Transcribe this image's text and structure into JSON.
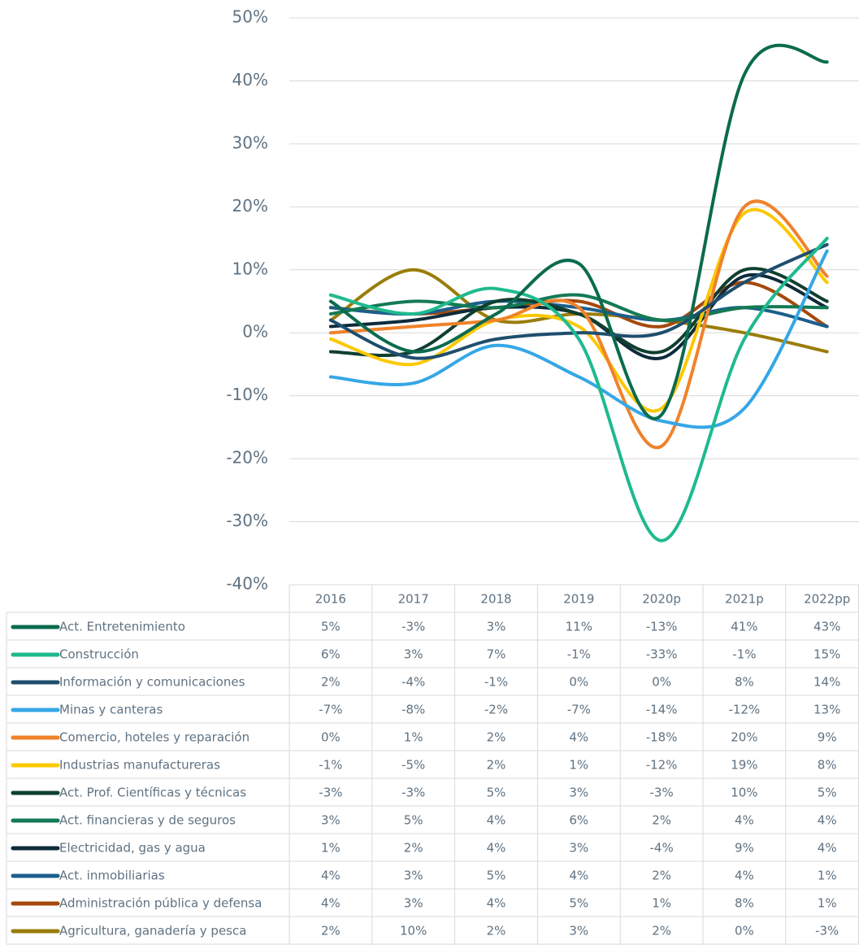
{
  "chart_data": {
    "type": "line",
    "categories": [
      "2016",
      "2017",
      "2018",
      "2019",
      "2020p",
      "2021p",
      "2022pp"
    ],
    "ylim": [
      -40,
      50
    ],
    "yticks": [
      {
        "value": -40,
        "label": "-40%"
      },
      {
        "value": -30,
        "label": "-30%"
      },
      {
        "value": -20,
        "label": "-20%"
      },
      {
        "value": -10,
        "label": "-10%"
      },
      {
        "value": 0,
        "label": "0%"
      },
      {
        "value": 10,
        "label": "10%"
      },
      {
        "value": 20,
        "label": "20%"
      },
      {
        "value": 30,
        "label": "30%"
      },
      {
        "value": 40,
        "label": "40%"
      },
      {
        "value": 50,
        "label": "50%"
      }
    ],
    "grid": true,
    "series": [
      {
        "name": "Act. Entretenimiento",
        "color": "#0b6b4e",
        "values": [
          5,
          -3,
          3,
          11,
          -13,
          41,
          43
        ],
        "value_labels": [
          "5%",
          "-3%",
          "3%",
          "11%",
          "-13%",
          "41%",
          "43%"
        ]
      },
      {
        "name": "Construcción",
        "color": "#1fba8f",
        "values": [
          6,
          3,
          7,
          -1,
          -33,
          -1,
          15
        ],
        "value_labels": [
          "6%",
          "3%",
          "7%",
          "-1%",
          "-33%",
          "-1%",
          "15%"
        ]
      },
      {
        "name": "Información y comunicaciones",
        "color": "#1f4e6e",
        "values": [
          2,
          -4,
          -1,
          0,
          0,
          8,
          14
        ],
        "value_labels": [
          "2%",
          "-4%",
          "-1%",
          "0%",
          "0%",
          "8%",
          "14%"
        ]
      },
      {
        "name": "Minas y canteras",
        "color": "#35a7e6",
        "values": [
          -7,
          -8,
          -2,
          -7,
          -14,
          -12,
          13
        ],
        "value_labels": [
          "-7%",
          "-8%",
          "-2%",
          "-7%",
          "-14%",
          "-12%",
          "13%"
        ]
      },
      {
        "name": "Comercio, hoteles y reparación",
        "color": "#f0822a",
        "values": [
          0,
          1,
          2,
          4,
          -18,
          20,
          9
        ],
        "value_labels": [
          "0%",
          "1%",
          "2%",
          "4%",
          "-18%",
          "20%",
          "9%"
        ]
      },
      {
        "name": "Industrias manufactureras",
        "color": "#fcc800",
        "values": [
          -1,
          -5,
          2,
          1,
          -12,
          19,
          8
        ],
        "value_labels": [
          "-1%",
          "-5%",
          "2%",
          "1%",
          "-12%",
          "19%",
          "8%"
        ]
      },
      {
        "name": "Act. Prof. Científicas y técnicas",
        "color": "#0f3f30",
        "values": [
          -3,
          -3,
          5,
          3,
          -3,
          10,
          5
        ],
        "value_labels": [
          "-3%",
          "-3%",
          "5%",
          "3%",
          "-3%",
          "10%",
          "5%"
        ]
      },
      {
        "name": "Act. financieras y de seguros",
        "color": "#137a55",
        "values": [
          3,
          5,
          4,
          6,
          2,
          4,
          4
        ],
        "value_labels": [
          "3%",
          "5%",
          "4%",
          "6%",
          "2%",
          "4%",
          "4%"
        ]
      },
      {
        "name": "Electricidad, gas y agua",
        "color": "#0d2b3a",
        "values": [
          1,
          2,
          4,
          3,
          -4,
          9,
          4
        ],
        "value_labels": [
          "1%",
          "2%",
          "4%",
          "3%",
          "-4%",
          "9%",
          "4%"
        ]
      },
      {
        "name": "Act. inmobiliarias",
        "color": "#1c5f8c",
        "values": [
          4,
          3,
          5,
          4,
          2,
          4,
          1
        ],
        "value_labels": [
          "4%",
          "3%",
          "5%",
          "4%",
          "2%",
          "4%",
          "1%"
        ]
      },
      {
        "name": "Administración pública y defensa",
        "color": "#a4490c",
        "values": [
          4,
          3,
          4,
          5,
          1,
          8,
          1
        ],
        "value_labels": [
          "4%",
          "3%",
          "4%",
          "5%",
          "1%",
          "8%",
          "1%"
        ]
      },
      {
        "name": "Agricultura, ganadería y pesca",
        "color": "#9a7d0a",
        "values": [
          2,
          10,
          2,
          3,
          2,
          0,
          -3
        ],
        "value_labels": [
          "2%",
          "10%",
          "2%",
          "3%",
          "2%",
          "0%",
          "-3%"
        ]
      }
    ]
  }
}
